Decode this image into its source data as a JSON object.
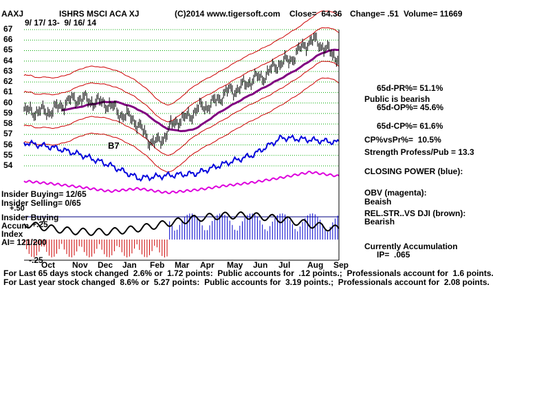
{
  "header": {
    "ticker": "AAXJ",
    "name": "ISHRS MSCI ACA XJ",
    "copyright": "(C)2014 www.tigersoft.com",
    "close": "Close=  64.36",
    "change": "Change= .51",
    "volume": "Volume= 11669",
    "date_range": "9/ 17/ 13-  9/ 16/ 14"
  },
  "price_axis_labels": [
    "67",
    "66",
    "65",
    "64",
    "63",
    "62",
    "61",
    "60",
    "59",
    "58",
    "57",
    "56",
    "55",
    "54"
  ],
  "month_labels": [
    "Oct",
    "Nov",
    "Dec",
    "Jan",
    "Feb",
    "Mar",
    "Apr",
    "May",
    "Jun",
    "Jul",
    "Aug",
    "Sep"
  ],
  "signal_label": "B7",
  "left_labels": {
    "insider_buying": "Insider Buying= 12/65",
    "insider_selling": "Insider Selling= 0/65",
    "zero_top": "+.50",
    "ia_title": "Insider Buying",
    "accum": "Accum",
    "plus25": "+.25",
    "index": "Index",
    "ai": "AI= 121/200",
    "minus25": "-.25"
  },
  "right_panel": {
    "pr": "65d-PR%= 51.1%",
    "public_bearish": "Public is bearish",
    "op": "65d-OP%= 45.6%",
    "cp": "65d-CP%= 61.6%",
    "cpvspr": "CP%vsPr%=  10.5%",
    "strength": "Strength Profess/Pub = 13.3",
    "closing_power": "CLOSING POWER (blue):",
    "obv": "OBV (magenta):",
    "obv_state": "Beaish",
    "relstr": "REL.STR..VS DJI (brown):",
    "relstr_state": "Bearish",
    "accum_title": "Currently Accumulation",
    "ip": "IP=  .065"
  },
  "footer": {
    "line1": "For Last 65 days stock changed  2.6% or  1.72 points:  Public accounts for  .12 points.;  Professionals account for  1.6 points.",
    "line2": "For Last year stock changed  8.6% or  5.27 points:  Public accounts for  3.19 points.;  Professionals account for  2.08 points."
  },
  "colors": {
    "price": "#000000",
    "bands": "#cc0000",
    "ma": "#800080",
    "closing_power": "#0000dd",
    "obv": "#dd00dd",
    "relstr": "#000000",
    "grid": "#00aa00",
    "accum_pos": "#0000cc",
    "accum_neg": "#cc0000"
  },
  "chart_data": {
    "type": "line",
    "ylim": [
      54,
      67
    ],
    "x": [
      "Oct",
      "Nov",
      "Dec",
      "Jan",
      "Feb",
      "Mar",
      "Apr",
      "May",
      "Jun",
      "Jul",
      "Aug",
      "Sep"
    ],
    "series": [
      {
        "values": [
          59.2,
          60.4,
          60.0,
          58.7,
          56.2,
          58.4,
          59.7,
          61.2,
          62.4,
          63.9,
          65.9,
          64.4
        ]
      }
    ]
  }
}
